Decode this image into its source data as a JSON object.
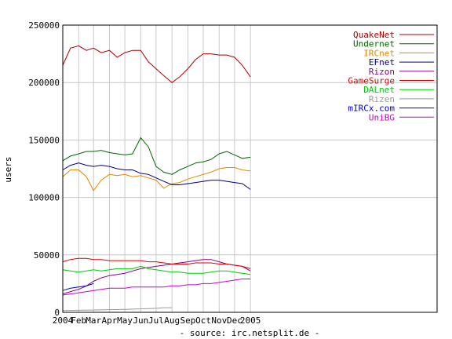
{
  "chart_data": {
    "type": "line",
    "title": "",
    "xlabel": "- source: irc.netsplit.de -",
    "ylabel": "users",
    "ylim": [
      0,
      250000
    ],
    "yticks": [
      0,
      50000,
      100000,
      150000,
      200000,
      250000
    ],
    "ytick_labels": [
      "0",
      "50000",
      "100000",
      "150000",
      "200000",
      "250000"
    ],
    "xlim": [
      "2004-01-01",
      "2005-12-31"
    ],
    "xtick_labels": [
      "2004",
      "Feb",
      "Mar",
      "Apr",
      "May",
      "Jun",
      "Jul",
      "Aug",
      "Sep",
      "Oct",
      "Nov",
      "Dec",
      "2005"
    ],
    "xticks": [
      "2004-01-01",
      "2004-02-01",
      "2004-03-01",
      "2004-04-01",
      "2004-05-01",
      "2004-06-01",
      "2004-07-01",
      "2004-08-01",
      "2004-09-01",
      "2004-10-01",
      "2004-11-01",
      "2004-12-01",
      "2005-01-01"
    ],
    "grid": true,
    "legend_position": "top-right",
    "series": [
      {
        "name": "QuakeNet",
        "color": "#aa0000",
        "x": [
          "2004-01-01",
          "2004-01-16",
          "2004-02-01",
          "2004-02-16",
          "2004-03-01",
          "2004-03-16",
          "2004-04-01",
          "2004-04-16",
          "2004-05-01",
          "2004-05-16",
          "2004-06-01",
          "2004-06-16",
          "2004-07-01",
          "2004-07-16",
          "2004-08-01",
          "2004-08-16",
          "2004-09-01",
          "2004-09-16",
          "2004-10-01",
          "2004-10-16",
          "2004-11-01",
          "2004-11-16",
          "2004-12-01",
          "2004-12-16",
          "2005-01-01"
        ],
        "values": [
          215000,
          230000,
          232000,
          228000,
          230000,
          226000,
          228000,
          222000,
          226000,
          228000,
          228000,
          218000,
          212000,
          206000,
          200000,
          205000,
          212000,
          220000,
          225000,
          225000,
          224000,
          224000,
          222000,
          215000,
          205000
        ]
      },
      {
        "name": "Undernet",
        "color": "#006600",
        "x": [
          "2004-01-01",
          "2004-01-16",
          "2004-02-01",
          "2004-02-16",
          "2004-03-01",
          "2004-03-16",
          "2004-04-01",
          "2004-04-16",
          "2004-05-01",
          "2004-05-16",
          "2004-06-01",
          "2004-06-16",
          "2004-07-01",
          "2004-07-16",
          "2004-08-01",
          "2004-08-16",
          "2004-09-01",
          "2004-09-16",
          "2004-10-01",
          "2004-10-16",
          "2004-11-01",
          "2004-11-16",
          "2004-12-01",
          "2004-12-16",
          "2005-01-01"
        ],
        "values": [
          132000,
          136000,
          138000,
          140000,
          140000,
          141000,
          139000,
          138000,
          137000,
          138000,
          152000,
          144000,
          127000,
          122000,
          120000,
          124000,
          127000,
          130000,
          131000,
          133000,
          138000,
          140000,
          137000,
          134000,
          135000
        ]
      },
      {
        "name": "IRCnet",
        "color": "#dd8800",
        "x": [
          "2004-01-01",
          "2004-01-16",
          "2004-02-01",
          "2004-02-16",
          "2004-03-01",
          "2004-03-16",
          "2004-04-01",
          "2004-04-16",
          "2004-05-01",
          "2004-05-16",
          "2004-06-01",
          "2004-06-16",
          "2004-07-01",
          "2004-07-16",
          "2004-08-01",
          "2004-08-16",
          "2004-09-01",
          "2004-09-16",
          "2004-10-01",
          "2004-10-16",
          "2004-11-01",
          "2004-11-16",
          "2004-12-01",
          "2004-12-16",
          "2005-01-01"
        ],
        "values": [
          118000,
          124000,
          124000,
          118000,
          106000,
          115000,
          120000,
          119000,
          120000,
          118000,
          119000,
          117000,
          115000,
          108000,
          112000,
          113000,
          116000,
          118000,
          120000,
          122000,
          125000,
          126000,
          126000,
          124000,
          123000
        ]
      },
      {
        "name": "EFnet",
        "color": "#000080",
        "x": [
          "2004-01-01",
          "2004-01-16",
          "2004-02-01",
          "2004-02-16",
          "2004-03-01",
          "2004-03-16",
          "2004-04-01",
          "2004-04-16",
          "2004-05-01",
          "2004-05-16",
          "2004-06-01",
          "2004-06-16",
          "2004-07-01",
          "2004-07-16",
          "2004-08-01",
          "2004-08-16",
          "2004-09-01",
          "2004-09-16",
          "2004-10-01",
          "2004-10-16",
          "2004-11-01",
          "2004-11-16",
          "2004-12-01",
          "2004-12-16",
          "2005-01-01"
        ],
        "values": [
          124000,
          128000,
          130000,
          128000,
          127000,
          128000,
          127000,
          125000,
          124000,
          124000,
          121000,
          120000,
          117000,
          114000,
          111000,
          111000,
          112000,
          113000,
          114000,
          115000,
          115000,
          114000,
          113000,
          112000,
          107000
        ]
      },
      {
        "name": "Rizon",
        "color": "#880088",
        "x": [
          "2004-01-01",
          "2004-01-16",
          "2004-02-01",
          "2004-02-16",
          "2004-03-01",
          "2004-03-16",
          "2004-04-01",
          "2004-04-16",
          "2004-05-01",
          "2004-05-16",
          "2004-06-01",
          "2004-06-16",
          "2004-07-01",
          "2004-07-16",
          "2004-08-01",
          "2004-08-16",
          "2004-09-01",
          "2004-09-16",
          "2004-10-01",
          "2004-10-16",
          "2004-11-01",
          "2004-11-16",
          "2004-12-01",
          "2004-12-16",
          "2005-01-01"
        ],
        "values": [
          16000,
          18000,
          20000,
          23000,
          27000,
          30000,
          32000,
          33000,
          34000,
          36000,
          38000,
          39000,
          40000,
          41000,
          42000,
          43000,
          44000,
          45000,
          46000,
          46000,
          44000,
          42000,
          41000,
          40000,
          36000
        ]
      },
      {
        "name": "GameSurge",
        "color": "#dd0000",
        "x": [
          "2004-01-01",
          "2004-01-16",
          "2004-02-01",
          "2004-02-16",
          "2004-03-01",
          "2004-03-16",
          "2004-04-01",
          "2004-04-16",
          "2004-05-01",
          "2004-05-16",
          "2004-06-01",
          "2004-06-16",
          "2004-07-01",
          "2004-07-16",
          "2004-08-01",
          "2004-08-16",
          "2004-09-01",
          "2004-09-16",
          "2004-10-01",
          "2004-10-16",
          "2004-11-01",
          "2004-11-16",
          "2004-12-01",
          "2004-12-16",
          "2005-01-01"
        ],
        "values": [
          44000,
          46000,
          47000,
          47000,
          46000,
          46000,
          45000,
          45000,
          45000,
          45000,
          45000,
          44000,
          44000,
          43000,
          42000,
          42000,
          42000,
          43000,
          43000,
          43000,
          42000,
          42000,
          41000,
          40000,
          38000
        ]
      },
      {
        "name": "DALnet",
        "color": "#00cc00",
        "x": [
          "2004-01-01",
          "2004-01-16",
          "2004-02-01",
          "2004-02-16",
          "2004-03-01",
          "2004-03-16",
          "2004-04-01",
          "2004-04-16",
          "2004-05-01",
          "2004-05-16",
          "2004-06-01",
          "2004-06-16",
          "2004-07-01",
          "2004-07-16",
          "2004-08-01",
          "2004-08-16",
          "2004-09-01",
          "2004-09-16",
          "2004-10-01",
          "2004-10-16",
          "2004-11-01",
          "2004-11-16",
          "2004-12-01",
          "2004-12-16",
          "2005-01-01"
        ],
        "values": [
          37000,
          36000,
          35000,
          36000,
          37000,
          36000,
          37000,
          38000,
          38000,
          38000,
          40000,
          38000,
          37000,
          36000,
          35000,
          35000,
          34000,
          34000,
          34000,
          35000,
          36000,
          36000,
          35000,
          34000,
          33000
        ]
      },
      {
        "name": "Rizen",
        "color": "#999999",
        "x": [
          "2004-01-01",
          "2004-02-01",
          "2004-03-01",
          "2004-04-01",
          "2004-05-01",
          "2004-06-01",
          "2004-07-01",
          "2004-07-16",
          "2004-08-01"
        ],
        "values": [
          1500,
          1800,
          2000,
          2300,
          2500,
          3000,
          3500,
          4000,
          4000
        ]
      },
      {
        "name": "mIRCx.com",
        "color": "#0000cc",
        "x": [
          "2004-01-01",
          "2004-01-16",
          "2004-02-01",
          "2004-02-16",
          "2004-03-01"
        ],
        "values": [
          19000,
          21000,
          22000,
          23000,
          25000
        ]
      },
      {
        "name": "UniBG",
        "color": "#cc00cc",
        "x": [
          "2004-01-01",
          "2004-01-16",
          "2004-02-01",
          "2004-02-16",
          "2004-03-01",
          "2004-03-16",
          "2004-04-01",
          "2004-04-16",
          "2004-05-01",
          "2004-05-16",
          "2004-06-01",
          "2004-06-16",
          "2004-07-01",
          "2004-07-16",
          "2004-08-01",
          "2004-08-16",
          "2004-09-01",
          "2004-09-16",
          "2004-10-01",
          "2004-10-16",
          "2004-11-01",
          "2004-11-16",
          "2004-12-01",
          "2004-12-16",
          "2005-01-01"
        ],
        "values": [
          15000,
          16000,
          17000,
          18000,
          19000,
          20000,
          21000,
          21000,
          21000,
          22000,
          22000,
          22000,
          22000,
          22000,
          23000,
          23000,
          24000,
          24000,
          25000,
          25000,
          26000,
          27000,
          28000,
          29000,
          29000
        ]
      }
    ]
  }
}
